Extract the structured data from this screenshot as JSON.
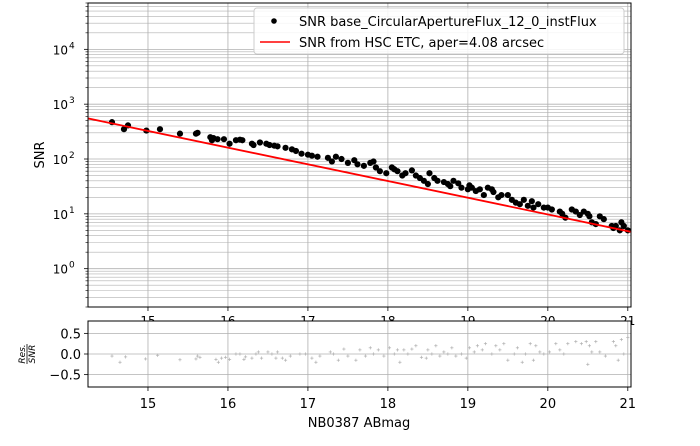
{
  "chart_data": [
    {
      "type": "scatter",
      "panel": "main",
      "title": "",
      "xlabel": "",
      "ylabel": "SNR",
      "yscale": "log",
      "xlim": [
        14.25,
        21.04
      ],
      "ylim": [
        0.2,
        70000
      ],
      "grid": true,
      "x_ticks": [
        15,
        16,
        17,
        18,
        19,
        20,
        21
      ],
      "x_tick_labels": [
        "15",
        "16",
        "17",
        "18",
        "19",
        "20",
        "21"
      ],
      "y_ticks": [
        1,
        10,
        100,
        1000,
        10000
      ],
      "y_tick_labels": [
        {
          "base": "10",
          "exp": "0"
        },
        {
          "base": "10",
          "exp": "1"
        },
        {
          "base": "10",
          "exp": "2"
        },
        {
          "base": "10",
          "exp": "3"
        },
        {
          "base": "10",
          "exp": "4"
        }
      ],
      "legend": {
        "position": "upper right",
        "entries": [
          {
            "label": "SNR base_CircularApertureFlux_12_0_instFlux",
            "marker": "dot",
            "color": "#000000"
          },
          {
            "label": "SNR from HSC ETC, aper=4.08 arcsec",
            "marker": "line",
            "color": "#ff0000"
          }
        ]
      },
      "series": [
        {
          "name": "SNR base_CircularApertureFlux_12_0_instFlux",
          "kind": "scatter",
          "color": "#000000",
          "x": [
            14.55,
            14.7,
            14.75,
            14.98,
            15.15,
            15.4,
            15.6,
            15.62,
            15.78,
            15.8,
            15.82,
            15.87,
            15.95,
            16.02,
            16.1,
            16.15,
            16.18,
            16.3,
            16.32,
            16.4,
            16.48,
            16.52,
            16.58,
            16.62,
            16.72,
            16.8,
            16.85,
            16.92,
            17.0,
            17.05,
            17.12,
            17.25,
            17.3,
            17.35,
            17.42,
            17.5,
            17.58,
            17.62,
            17.7,
            17.78,
            17.82,
            17.85,
            17.9,
            17.98,
            18.05,
            18.08,
            18.12,
            18.18,
            18.22,
            18.3,
            18.35,
            18.4,
            18.45,
            18.5,
            18.52,
            18.58,
            18.62,
            18.7,
            18.75,
            18.78,
            18.82,
            18.88,
            18.92,
            19.0,
            19.02,
            19.05,
            19.1,
            19.15,
            19.2,
            19.25,
            19.3,
            19.32,
            19.38,
            19.42,
            19.5,
            19.55,
            19.6,
            19.65,
            19.7,
            19.75,
            19.8,
            19.82,
            19.88,
            19.95,
            20.0,
            20.05,
            20.15,
            20.18,
            20.22,
            20.3,
            20.35,
            20.4,
            20.45,
            20.5,
            20.52,
            20.55,
            20.6,
            20.65,
            20.7,
            20.8,
            20.82,
            20.85,
            20.9,
            20.92,
            20.95,
            21.0
          ],
          "y": [
            470,
            350,
            410,
            330,
            350,
            290,
            290,
            300,
            250,
            220,
            240,
            230,
            230,
            190,
            220,
            225,
            220,
            190,
            180,
            200,
            190,
            180,
            175,
            170,
            160,
            150,
            140,
            125,
            120,
            115,
            110,
            105,
            90,
            110,
            100,
            85,
            95,
            80,
            75,
            85,
            90,
            70,
            60,
            55,
            70,
            65,
            60,
            50,
            55,
            62,
            50,
            45,
            40,
            35,
            55,
            45,
            40,
            38,
            35,
            32,
            40,
            36,
            30,
            28,
            33,
            30,
            26,
            28,
            22,
            30,
            28,
            25,
            20,
            22,
            22,
            18,
            16,
            15,
            18,
            14,
            17,
            13,
            15,
            13,
            13,
            12,
            11,
            10,
            8.5,
            12,
            11,
            9.5,
            11,
            10,
            9,
            7,
            6.5,
            9,
            8,
            6,
            5.5,
            6,
            5,
            7,
            6,
            5
          ]
        },
        {
          "name": "SNR from HSC ETC, aper=4.08 arcsec",
          "kind": "line",
          "color": "#ff0000",
          "x": [
            14.25,
            21.04
          ],
          "y": [
            550,
            4.7
          ]
        }
      ]
    },
    {
      "type": "scatter",
      "panel": "residual",
      "xlabel": "NB0387 ABmag",
      "ylabel": "Res./SNR",
      "ylabel_numerator": "Res.",
      "ylabel_denominator": "SNR",
      "xlim": [
        14.25,
        21.04
      ],
      "ylim": [
        -0.8,
        0.8
      ],
      "grid": true,
      "x_ticks": [
        15,
        16,
        17,
        18,
        19,
        20,
        21
      ],
      "x_tick_labels": [
        "15",
        "16",
        "17",
        "18",
        "19",
        "20",
        "21"
      ],
      "y_ticks": [
        -0.5,
        0.0,
        0.5
      ],
      "y_tick_labels": [
        "−0.5",
        "0.0",
        "0.5"
      ],
      "series": [
        {
          "name": "residual",
          "kind": "plus",
          "color": "#b0b0b0",
          "x": [
            14.55,
            14.65,
            14.72,
            14.97,
            15.12,
            15.4,
            15.6,
            15.62,
            15.65,
            15.85,
            15.88,
            15.92,
            15.97,
            16.02,
            16.1,
            16.15,
            16.2,
            16.22,
            16.3,
            16.35,
            16.38,
            16.42,
            16.5,
            16.55,
            16.6,
            16.62,
            16.68,
            16.72,
            16.78,
            16.9,
            16.97,
            17.05,
            17.1,
            17.15,
            17.28,
            17.32,
            17.38,
            17.45,
            17.5,
            17.6,
            17.65,
            17.72,
            17.78,
            17.82,
            17.88,
            17.95,
            18.02,
            18.08,
            18.12,
            18.15,
            18.2,
            18.25,
            18.3,
            18.35,
            18.42,
            18.48,
            18.5,
            18.55,
            18.6,
            18.65,
            18.7,
            18.75,
            18.8,
            18.85,
            18.92,
            18.98,
            19.02,
            19.08,
            19.12,
            19.18,
            19.22,
            19.3,
            19.35,
            19.4,
            19.45,
            19.5,
            19.58,
            19.62,
            19.68,
            19.72,
            19.78,
            19.82,
            19.85,
            19.9,
            19.95,
            20.02,
            20.1,
            20.15,
            20.2,
            20.25,
            20.35,
            20.42,
            20.48,
            20.5,
            20.52,
            20.55,
            20.6,
            20.65,
            20.72,
            20.82,
            20.85,
            20.88,
            20.92,
            20.95,
            21.0
          ],
          "y": [
            -0.05,
            -0.2,
            -0.07,
            -0.12,
            -0.03,
            -0.14,
            -0.12,
            -0.05,
            -0.08,
            -0.13,
            -0.2,
            -0.1,
            -0.08,
            -0.13,
            0.0,
            0.0,
            -0.13,
            -0.07,
            -0.1,
            0.0,
            0.05,
            -0.1,
            0.05,
            0.0,
            -0.1,
            0.05,
            -0.1,
            -0.15,
            -0.05,
            0.0,
            0.0,
            -0.1,
            -0.2,
            -0.05,
            0.05,
            0.0,
            -0.15,
            0.12,
            -0.05,
            -0.15,
            0.1,
            -0.05,
            0.15,
            0.0,
            0.1,
            -0.05,
            0.15,
            0.0,
            0.1,
            -0.2,
            0.1,
            0.0,
            0.12,
            0.2,
            -0.08,
            -0.1,
            0.1,
            0.0,
            0.2,
            -0.05,
            0.05,
            0.0,
            0.15,
            -0.05,
            0.0,
            -0.1,
            0.15,
            0.05,
            0.2,
            0.1,
            0.25,
            0.0,
            0.2,
            0.1,
            0.25,
            -0.15,
            0.0,
            0.15,
            -0.2,
            0.0,
            0.25,
            -0.15,
            0.2,
            0.05,
            0.0,
            0.05,
            0.25,
            0.1,
            0.0,
            0.25,
            0.3,
            0.25,
            0.3,
            -0.25,
            0.2,
            0.05,
            0.3,
            0.05,
            -0.05,
            0.3,
            0.2,
            -0.15,
            0.35,
            0.0,
            0.4
          ]
        }
      ]
    }
  ]
}
